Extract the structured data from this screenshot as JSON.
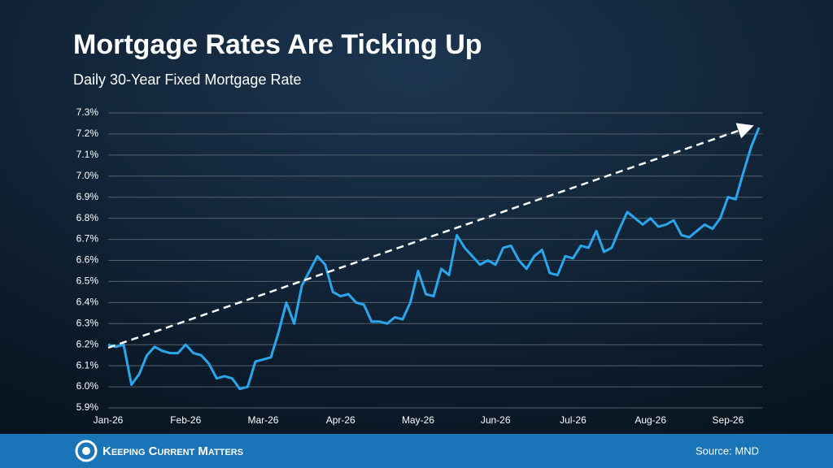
{
  "chart_data": {
    "type": "line",
    "title": "Mortgage Rates Are Ticking Up",
    "subtitle": "Daily 30-Year Fixed Mortgage Rate",
    "source": "Source: MND",
    "brand": "Keeping Current Matters",
    "categories": [
      "Jan-26",
      null,
      null,
      null,
      null,
      null,
      null,
      null,
      null,
      null,
      "Feb-26",
      null,
      null,
      null,
      null,
      null,
      null,
      null,
      null,
      null,
      "Mar-26",
      null,
      null,
      null,
      null,
      null,
      null,
      null,
      null,
      null,
      "Apr-26",
      null,
      null,
      null,
      null,
      null,
      null,
      null,
      null,
      null,
      "May-26",
      null,
      null,
      null,
      null,
      null,
      null,
      null,
      null,
      null,
      "Jun-26",
      null,
      null,
      null,
      null,
      null,
      null,
      null,
      null,
      null,
      "Jul-26",
      null,
      null,
      null,
      null,
      null,
      null,
      null,
      null,
      null,
      "Aug-26",
      null,
      null,
      null,
      null,
      null,
      null,
      null,
      null,
      null,
      "Sep-26",
      null,
      null,
      null,
      null
    ],
    "series": [
      {
        "name": "30-Year Fixed",
        "color": "#2aa6ec",
        "values": [
          6.2,
          6.19,
          6.2,
          6.01,
          6.06,
          6.15,
          6.19,
          6.17,
          6.16,
          6.16,
          6.2,
          6.16,
          6.15,
          6.11,
          6.04,
          6.05,
          6.04,
          5.99,
          6.0,
          6.12,
          6.13,
          6.14,
          6.26,
          6.4,
          6.3,
          6.48,
          6.55,
          6.62,
          6.58,
          6.45,
          6.43,
          6.44,
          6.4,
          6.39,
          6.31,
          6.31,
          6.3,
          6.33,
          6.32,
          6.4,
          6.55,
          6.44,
          6.43,
          6.56,
          6.53,
          6.72,
          6.66,
          6.62,
          6.58,
          6.6,
          6.58,
          6.66,
          6.67,
          6.6,
          6.56,
          6.62,
          6.65,
          6.54,
          6.53,
          6.62,
          6.61,
          6.67,
          6.66,
          6.74,
          6.64,
          6.66,
          6.75,
          6.83,
          6.8,
          6.77,
          6.8,
          6.76,
          6.77,
          6.79,
          6.72,
          6.71,
          6.74,
          6.77,
          6.75,
          6.8,
          6.9,
          6.89,
          7.02,
          7.14,
          7.23
        ]
      }
    ],
    "ylim": [
      5.9,
      7.3
    ],
    "yticks": [
      {
        "value": 5.9,
        "label": "5.9%"
      },
      {
        "value": 6.0,
        "label": "6.0%"
      },
      {
        "value": 6.1,
        "label": "6.1%"
      },
      {
        "value": 6.2,
        "label": "6.2%"
      },
      {
        "value": 6.3,
        "label": "6.3%"
      },
      {
        "value": 6.4,
        "label": "6.4%"
      },
      {
        "value": 6.5,
        "label": "6.5%"
      },
      {
        "value": 6.6,
        "label": "6.6%"
      },
      {
        "value": 6.7,
        "label": "6.7%"
      },
      {
        "value": 6.8,
        "label": "6.8%"
      },
      {
        "value": 6.9,
        "label": "6.9%"
      },
      {
        "value": 7.0,
        "label": "7.0%"
      },
      {
        "value": 7.1,
        "label": "7.1%"
      },
      {
        "value": 7.2,
        "label": "7.2%"
      },
      {
        "value": 7.3,
        "label": "7.3%"
      }
    ],
    "grid": true
  }
}
